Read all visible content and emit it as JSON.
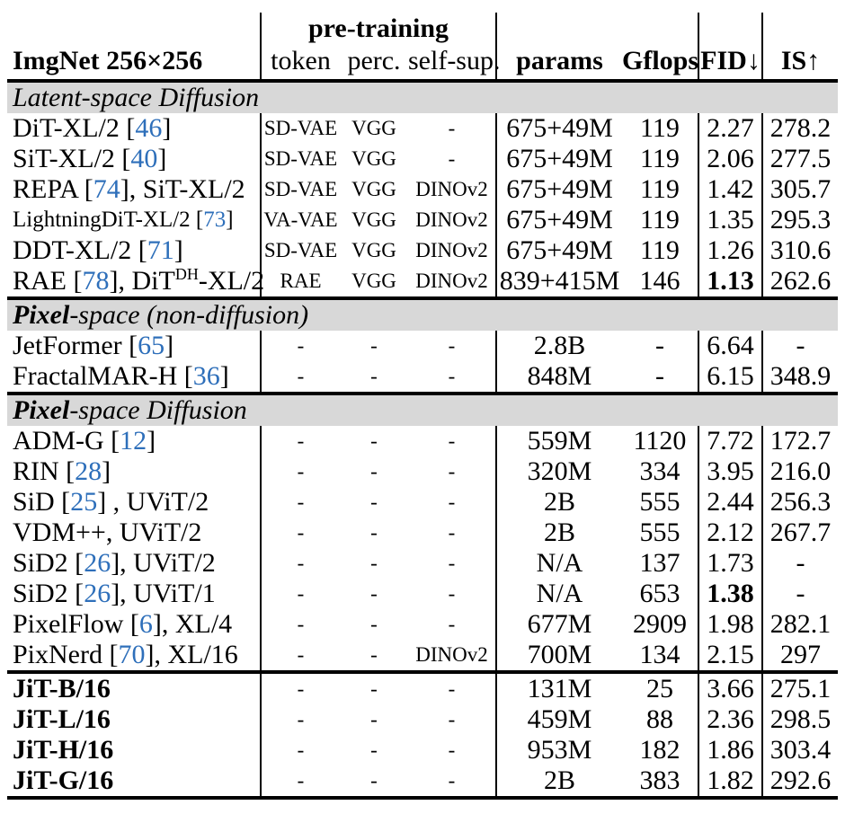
{
  "colors": {
    "link": "#2e6fba",
    "band": "#d8d8d8"
  },
  "header": {
    "dataset": "ImgNet 256×256",
    "pretraining": "pre-training",
    "token": "token",
    "perc": "perc.",
    "selfsup": "self-sup.",
    "params": "params",
    "gflops": "Gflops",
    "fid": "FID↓",
    "is": "IS↑"
  },
  "sections": [
    {
      "title": [
        {
          "t": "Latent-space Diffusion"
        }
      ],
      "rows": [
        {
          "method": [
            {
              "t": "DiT-XL/2 ["
            },
            {
              "t": "46",
              "s": "cite"
            },
            {
              "t": "]"
            }
          ],
          "token": "SD-VAE",
          "perc": "VGG",
          "selfsup": "-",
          "params": "675+49M",
          "gflops": "119",
          "fid": "2.27",
          "is": "278.2"
        },
        {
          "method": [
            {
              "t": "SiT-XL/2 ["
            },
            {
              "t": "40",
              "s": "cite"
            },
            {
              "t": "]"
            }
          ],
          "token": "SD-VAE",
          "perc": "VGG",
          "selfsup": "-",
          "params": "675+49M",
          "gflops": "119",
          "fid": "2.06",
          "is": "277.5"
        },
        {
          "method": [
            {
              "t": "REPA ["
            },
            {
              "t": "74",
              "s": "cite"
            },
            {
              "t": "], SiT-XL/2"
            }
          ],
          "token": "SD-VAE",
          "perc": "VGG",
          "selfsup": "DINOv2",
          "params": "675+49M",
          "gflops": "119",
          "fid": "1.42",
          "is": "305.7"
        },
        {
          "method": [
            {
              "t": "LightningDiT-XL/2 ["
            },
            {
              "t": "73",
              "s": "cite"
            },
            {
              "t": "]"
            }
          ],
          "nameSmall": true,
          "token": "VA-VAE",
          "perc": "VGG",
          "selfsup": "DINOv2",
          "params": "675+49M",
          "gflops": "119",
          "fid": "1.35",
          "is": "295.3"
        },
        {
          "method": [
            {
              "t": "DDT-XL/2 ["
            },
            {
              "t": "71",
              "s": "cite"
            },
            {
              "t": "]"
            }
          ],
          "token": "SD-VAE",
          "perc": "VGG",
          "selfsup": "DINOv2",
          "params": "675+49M",
          "gflops": "119",
          "fid": "1.26",
          "is": "310.6"
        },
        {
          "method": [
            {
              "t": "RAE ["
            },
            {
              "t": "78",
              "s": "cite"
            },
            {
              "t": "], DiT"
            },
            {
              "t": "DH",
              "s": "sup"
            },
            {
              "t": "-XL/2"
            }
          ],
          "token": "RAE",
          "perc": "VGG",
          "selfsup": "DINOv2",
          "params": "839+415M",
          "gflops": "146",
          "fid": "1.13",
          "fidBold": true,
          "is": "262.6"
        }
      ]
    },
    {
      "title": [
        {
          "t": "Pixel",
          "b": true
        },
        {
          "t": "-space (non-diffusion)"
        }
      ],
      "rows": [
        {
          "method": [
            {
              "t": "JetFormer ["
            },
            {
              "t": "65",
              "s": "cite"
            },
            {
              "t": "]"
            }
          ],
          "token": "-",
          "perc": "-",
          "selfsup": "-",
          "params": "2.8B",
          "gflops": "-",
          "fid": "6.64",
          "is": "-"
        },
        {
          "method": [
            {
              "t": "FractalMAR-H ["
            },
            {
              "t": "36",
              "s": "cite"
            },
            {
              "t": "]"
            }
          ],
          "token": "-",
          "perc": "-",
          "selfsup": "-",
          "params": "848M",
          "gflops": "-",
          "fid": "6.15",
          "is": "348.9"
        }
      ]
    },
    {
      "title": [
        {
          "t": "Pixel",
          "b": true
        },
        {
          "t": "-space Diffusion"
        }
      ],
      "rows": [
        {
          "method": [
            {
              "t": "ADM-G ["
            },
            {
              "t": "12",
              "s": "cite"
            },
            {
              "t": "]"
            }
          ],
          "token": "-",
          "perc": "-",
          "selfsup": "-",
          "params": "559M",
          "gflops": "1120",
          "fid": "7.72",
          "is": "172.7"
        },
        {
          "method": [
            {
              "t": "RIN ["
            },
            {
              "t": "28",
              "s": "cite"
            },
            {
              "t": "]"
            }
          ],
          "token": "-",
          "perc": "-",
          "selfsup": "-",
          "params": "320M",
          "gflops": "334",
          "fid": "3.95",
          "is": "216.0"
        },
        {
          "method": [
            {
              "t": "SiD ["
            },
            {
              "t": "25",
              "s": "cite"
            },
            {
              "t": "] , UViT/2"
            }
          ],
          "token": "-",
          "perc": "-",
          "selfsup": "-",
          "params": "2B",
          "gflops": "555",
          "fid": "2.44",
          "is": "256.3"
        },
        {
          "method": [
            {
              "t": "VDM++, UViT/2"
            }
          ],
          "token": "-",
          "perc": "-",
          "selfsup": "-",
          "params": "2B",
          "gflops": "555",
          "fid": "2.12",
          "is": "267.7"
        },
        {
          "method": [
            {
              "t": "SiD2 ["
            },
            {
              "t": "26",
              "s": "cite"
            },
            {
              "t": "], UViT/2"
            }
          ],
          "token": "-",
          "perc": "-",
          "selfsup": "-",
          "params": "N/A",
          "gflops": "137",
          "fid": "1.73",
          "is": "-"
        },
        {
          "method": [
            {
              "t": "SiD2 ["
            },
            {
              "t": "26",
              "s": "cite"
            },
            {
              "t": "], UViT/1"
            }
          ],
          "token": "-",
          "perc": "-",
          "selfsup": "-",
          "params": "N/A",
          "gflops": "653",
          "fid": "1.38",
          "fidBold": true,
          "is": "-"
        },
        {
          "method": [
            {
              "t": "PixelFlow ["
            },
            {
              "t": "6",
              "s": "cite"
            },
            {
              "t": "], XL/4"
            }
          ],
          "token": "-",
          "perc": "-",
          "selfsup": "-",
          "params": "677M",
          "gflops": "2909",
          "fid": "1.98",
          "is": "282.1"
        },
        {
          "method": [
            {
              "t": "PixNerd ["
            },
            {
              "t": "70",
              "s": "cite"
            },
            {
              "t": "], XL/16"
            }
          ],
          "token": "-",
          "perc": "-",
          "selfsup": "DINOv2",
          "params": "700M",
          "gflops": "134",
          "fid": "2.15",
          "is": "297"
        }
      ]
    },
    {
      "title": null,
      "rows": [
        {
          "method": [
            {
              "t": "JiT-B/16"
            }
          ],
          "nameBold": true,
          "token": "-",
          "perc": "-",
          "selfsup": "-",
          "params": "131M",
          "gflops": "25",
          "fid": "3.66",
          "is": "275.1"
        },
        {
          "method": [
            {
              "t": "JiT-L/16"
            }
          ],
          "nameBold": true,
          "token": "-",
          "perc": "-",
          "selfsup": "-",
          "params": "459M",
          "gflops": "88",
          "fid": "2.36",
          "is": "298.5"
        },
        {
          "method": [
            {
              "t": "JiT-H/16"
            }
          ],
          "nameBold": true,
          "token": "-",
          "perc": "-",
          "selfsup": "-",
          "params": "953M",
          "gflops": "182",
          "fid": "1.86",
          "is": "303.4"
        },
        {
          "method": [
            {
              "t": "JiT-G/16"
            }
          ],
          "nameBold": true,
          "token": "-",
          "perc": "-",
          "selfsup": "-",
          "params": "2B",
          "gflops": "383",
          "fid": "1.82",
          "is": "292.6"
        }
      ]
    }
  ]
}
